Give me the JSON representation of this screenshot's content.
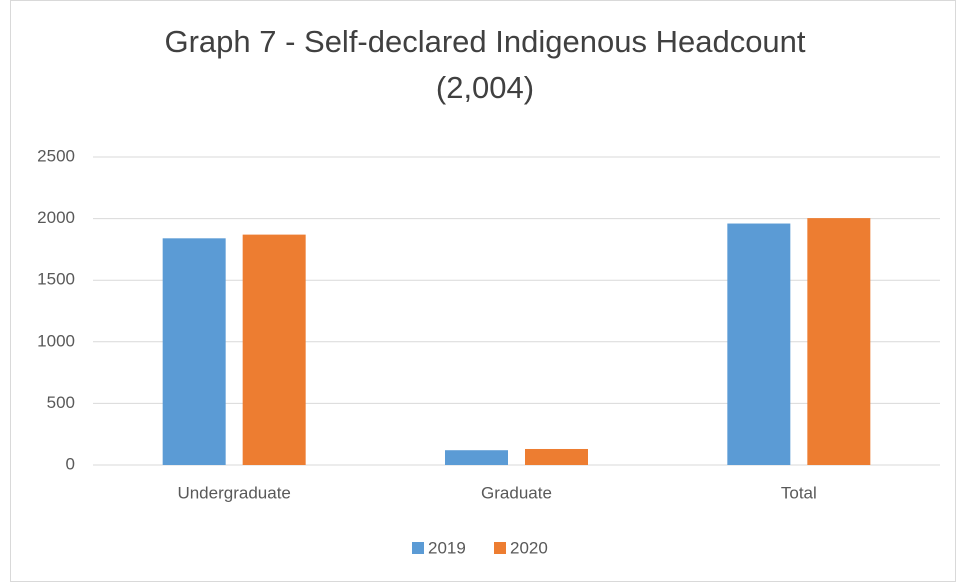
{
  "chart_data": {
    "type": "bar",
    "title": [
      "Graph 7 - Self-declared Indigenous Headcount",
      "(2,004)"
    ],
    "categories": [
      "Undergraduate",
      "Graduate",
      "Total"
    ],
    "series": [
      {
        "name": "2019",
        "color": "#5b9bd5",
        "values": [
          1840,
          120,
          1960
        ]
      },
      {
        "name": "2020",
        "color": "#ed7d31",
        "values": [
          1870,
          130,
          2004
        ]
      }
    ],
    "ylim": [
      0,
      2500
    ],
    "yticks": [
      0,
      500,
      1000,
      1500,
      2000,
      2500
    ],
    "grid": true,
    "legend": "bottom"
  }
}
